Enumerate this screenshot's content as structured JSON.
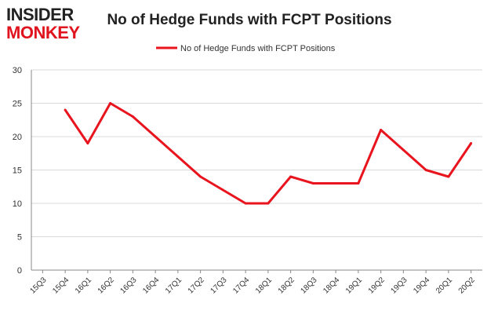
{
  "logo": {
    "line1": "INSIDER",
    "line2": "MONKEY"
  },
  "colors": {
    "series": "#e8141e",
    "grid": "#d9d9d9",
    "axis": "#888888",
    "text": "#333333"
  },
  "chart_data": {
    "type": "line",
    "title": "No of Hedge Funds with FCPT Positions",
    "xlabel": "",
    "ylabel": "",
    "categories": [
      "15Q3",
      "15Q4",
      "16Q1",
      "16Q2",
      "16Q3",
      "16Q4",
      "17Q1",
      "17Q2",
      "17Q3",
      "17Q4",
      "18Q1",
      "18Q2",
      "18Q3",
      "18Q4",
      "19Q1",
      "19Q2",
      "19Q3",
      "19Q4",
      "20Q1",
      "20Q2"
    ],
    "series": [
      {
        "name": "No of Hedge Funds with FCPT Positions",
        "values": [
          null,
          24,
          19,
          25,
          23,
          20,
          17,
          14,
          12,
          10,
          10,
          14,
          13,
          13,
          13,
          21,
          18,
          15,
          14,
          19
        ]
      }
    ],
    "ylim": [
      0,
      30
    ],
    "yticks": [
      0,
      5,
      10,
      15,
      20,
      25,
      30
    ],
    "grid": true,
    "legend": "top-center"
  }
}
